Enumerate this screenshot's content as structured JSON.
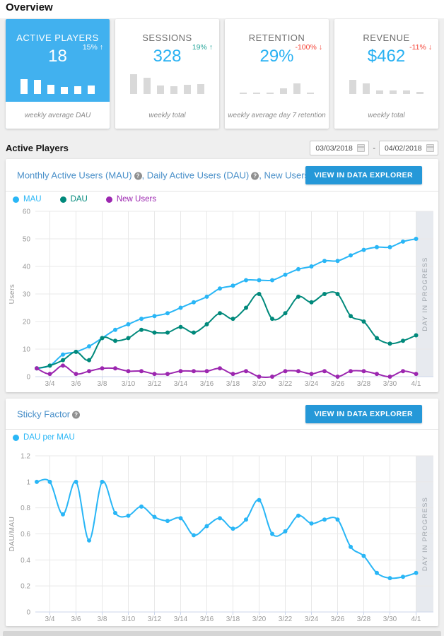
{
  "page": {
    "title": "Overview"
  },
  "icons": {
    "help_glyph": "?"
  },
  "colors": {
    "accent_blue": "#2598d8",
    "active_card_blue": "#41b1ef",
    "value_blue": "#29b1f2",
    "positive_green": "#26a69a",
    "negative_red": "#f44336",
    "mau_blue": "#29b6f6",
    "dau_teal": "#00897b",
    "new_users_purple": "#9c27b0"
  },
  "kpi_cards": [
    {
      "title": "ACTIVE PLAYERS",
      "value": "18",
      "change": "15%",
      "change_arrow": "↑",
      "change_color": "#ffffff",
      "footer": "weekly average DAU",
      "bars": [
        21,
        20,
        13,
        10,
        11,
        12
      ]
    },
    {
      "title": "SESSIONS",
      "value": "328",
      "change": "19%",
      "change_arrow": "↑",
      "change_color": "#26a69a",
      "footer": "weekly total",
      "bars": [
        28,
        23,
        12,
        11,
        13,
        14
      ]
    },
    {
      "title": "RETENTION",
      "value": "29%",
      "change": "-100%",
      "change_arrow": "↓",
      "change_color": "#f44336",
      "footer": "weekly average day 7 retention",
      "bars": [
        2,
        2,
        2,
        8,
        15,
        2
      ]
    },
    {
      "title": "REVENUE",
      "value": "$462",
      "change": "-11%",
      "change_arrow": "↓",
      "change_color": "#f44336",
      "footer": "weekly total",
      "bars": [
        20,
        15,
        5,
        5,
        5,
        3
      ]
    }
  ],
  "section": {
    "title": "Active Players",
    "date_from": "03/03/2018",
    "date_sep": "-",
    "date_to": "04/02/2018"
  },
  "panels": [
    {
      "sep": ", ",
      "title_segments": [
        "Monthly Active Users (MAU)",
        "Daily Active Users (DAU)",
        "New Users"
      ],
      "button": "VIEW IN DATA EXPLORER",
      "legend": [
        {
          "label": "MAU",
          "color": "#29b6f6"
        },
        {
          "label": "DAU",
          "color": "#00897b"
        },
        {
          "label": "New Users",
          "color": "#9c27b0"
        }
      ]
    },
    {
      "title_segments": [
        "Sticky Factor"
      ],
      "button": "VIEW IN DATA EXPLORER",
      "legend": [
        {
          "label": "DAU per MAU",
          "color": "#29b6f6"
        }
      ]
    }
  ],
  "chart_data": [
    {
      "type": "line",
      "title": "Monthly Active Users (MAU), Daily Active Users (DAU), New Users",
      "xlabel": "",
      "ylabel": "Users",
      "ylim": [
        0,
        60
      ],
      "yticks": [
        0,
        10,
        20,
        30,
        40,
        50,
        60
      ],
      "grid": true,
      "legend_position": "top-left",
      "band_label": "DAY IN PROGRESS",
      "x": [
        "3/3",
        "3/4",
        "3/5",
        "3/6",
        "3/7",
        "3/8",
        "3/9",
        "3/10",
        "3/11",
        "3/12",
        "3/13",
        "3/14",
        "3/15",
        "3/16",
        "3/17",
        "3/18",
        "3/19",
        "3/20",
        "3/21",
        "3/22",
        "3/23",
        "3/24",
        "3/25",
        "3/26",
        "3/27",
        "3/28",
        "3/29",
        "3/30",
        "3/31",
        "4/1"
      ],
      "series": [
        {
          "name": "MAU",
          "color": "#29b6f6",
          "values": [
            3,
            4,
            8,
            9,
            11,
            14,
            17,
            19,
            21,
            22,
            23,
            25,
            27,
            29,
            32,
            33,
            35,
            35,
            35,
            37,
            39,
            40,
            42,
            42,
            44,
            46,
            47,
            47,
            49,
            50
          ]
        },
        {
          "name": "DAU",
          "color": "#00897b",
          "values": [
            3,
            4,
            6,
            9,
            6,
            14,
            13,
            14,
            17,
            16,
            16,
            18,
            16,
            19,
            23,
            21,
            25,
            30,
            21,
            23,
            29,
            27,
            30,
            30,
            22,
            20,
            14,
            12,
            13,
            15
          ]
        },
        {
          "name": "New Users",
          "color": "#9c27b0",
          "values": [
            3,
            1,
            4,
            1,
            2,
            3,
            3,
            2,
            2,
            1,
            1,
            2,
            2,
            2,
            3,
            1,
            2,
            0,
            0,
            2,
            2,
            1,
            2,
            0,
            2,
            2,
            1,
            0,
            2,
            1
          ]
        }
      ]
    },
    {
      "type": "line",
      "title": "Sticky Factor",
      "xlabel": "",
      "ylabel": "DAU/MAU",
      "ylim": [
        0,
        1.2
      ],
      "yticks": [
        0,
        0.2,
        0.4,
        0.6,
        0.8,
        1,
        1.2
      ],
      "grid": true,
      "legend_position": "top-left",
      "band_label": "DAY IN PROGRESS",
      "x": [
        "3/3",
        "3/4",
        "3/5",
        "3/6",
        "3/7",
        "3/8",
        "3/9",
        "3/10",
        "3/11",
        "3/12",
        "3/13",
        "3/14",
        "3/15",
        "3/16",
        "3/17",
        "3/18",
        "3/19",
        "3/20",
        "3/21",
        "3/22",
        "3/23",
        "3/24",
        "3/25",
        "3/26",
        "3/27",
        "3/28",
        "3/29",
        "3/30",
        "3/31",
        "4/1"
      ],
      "series": [
        {
          "name": "DAU per MAU",
          "color": "#29b6f6",
          "values": [
            1,
            1,
            0.75,
            1,
            0.55,
            1,
            0.76,
            0.74,
            0.81,
            0.73,
            0.7,
            0.72,
            0.59,
            0.66,
            0.72,
            0.64,
            0.71,
            0.86,
            0.6,
            0.62,
            0.74,
            0.68,
            0.71,
            0.71,
            0.5,
            0.43,
            0.3,
            0.26,
            0.27,
            0.3
          ]
        }
      ]
    }
  ]
}
